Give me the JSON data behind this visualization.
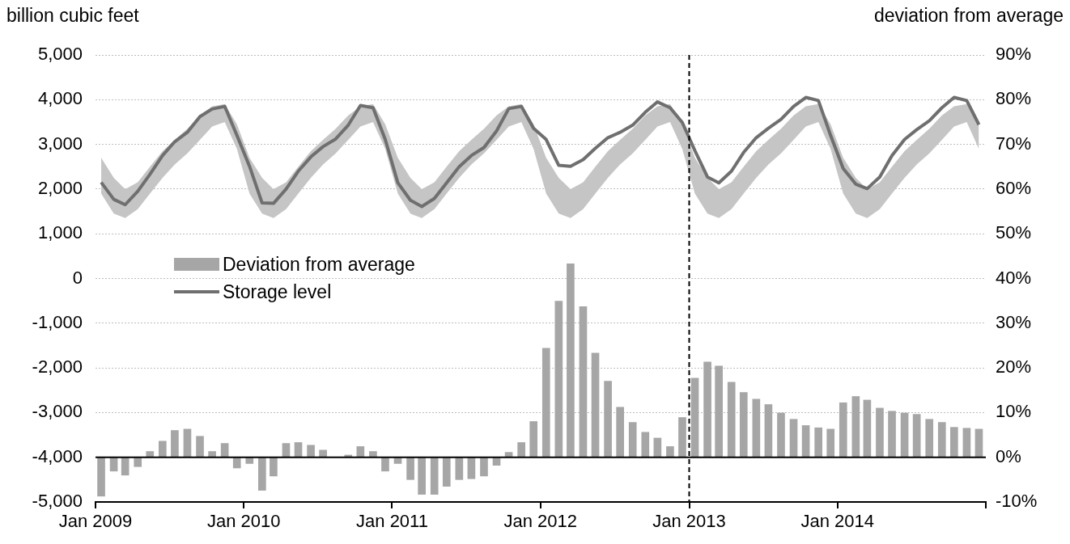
{
  "chart_data": {
    "type": "bar",
    "ylabel": "billion cubic feet",
    "y2label": "deviation from average",
    "x": [
      "2009-01-15",
      "2009-02-15",
      "2009-03-15",
      "2009-04-15",
      "2009-05-15",
      "2009-06-15",
      "2009-07-15",
      "2009-08-15",
      "2009-09-15",
      "2009-10-15",
      "2009-11-15",
      "2009-12-15",
      "2010-01-15",
      "2010-02-15",
      "2010-03-15",
      "2010-04-15",
      "2010-05-15",
      "2010-06-15",
      "2010-07-15",
      "2010-08-15",
      "2010-09-15",
      "2010-10-15",
      "2010-11-15",
      "2010-12-15",
      "2011-01-15",
      "2011-02-15",
      "2011-03-15",
      "2011-04-15",
      "2011-05-15",
      "2011-06-15",
      "2011-07-15",
      "2011-08-15",
      "2011-09-15",
      "2011-10-15",
      "2011-11-15",
      "2011-12-15",
      "2012-01-15",
      "2012-02-15",
      "2012-03-15",
      "2012-04-15",
      "2012-05-15",
      "2012-06-15",
      "2012-07-15",
      "2012-08-15",
      "2012-09-15",
      "2012-10-15",
      "2012-11-15",
      "2012-12-15",
      "2013-01-15",
      "2013-02-15",
      "2013-03-15",
      "2013-04-15",
      "2013-05-15",
      "2013-06-15",
      "2013-07-15",
      "2013-08-15",
      "2013-09-15",
      "2013-10-15",
      "2013-11-15",
      "2013-12-15",
      "2014-01-15",
      "2014-02-15",
      "2014-03-15",
      "2014-04-15",
      "2014-05-15",
      "2014-06-15",
      "2014-07-15",
      "2014-08-15",
      "2014-09-15",
      "2014-10-15",
      "2014-11-15",
      "2014-12-15"
    ],
    "series": [
      {
        "name": "Deviation from average",
        "axis": "y2",
        "color": "#a6a6a6",
        "values": [
          -8.7,
          -3.1,
          -4.0,
          -2.1,
          1.3,
          3.6,
          6.0,
          6.3,
          4.7,
          1.3,
          3.1,
          -2.4,
          -1.4,
          -7.4,
          -4.2,
          3.1,
          3.3,
          2.7,
          1.6,
          null,
          0.5,
          2.4,
          1.3,
          -3.1,
          -1.4,
          -5.0,
          -8.3,
          -8.3,
          -6.5,
          -5.0,
          -4.8,
          -4.2,
          -1.8,
          1.1,
          3.3,
          8.0,
          24.4,
          34.9,
          43.3,
          33.7,
          23.3,
          17.0,
          11.2,
          7.8,
          5.6,
          4.3,
          2.4,
          8.9,
          17.7,
          21.3,
          20.4,
          16.8,
          14.5,
          13.0,
          11.8,
          9.9,
          8.5,
          7.1,
          6.6,
          6.3,
          12.2,
          13.6,
          12.8,
          11.0,
          10.3,
          9.9,
          9.6,
          8.5,
          7.8,
          6.7,
          6.5,
          6.3
        ]
      },
      {
        "name": "Storage level",
        "type": "line",
        "color": "#6f6f6f",
        "values": [
          2150,
          1770,
          1650,
          1950,
          2330,
          2750,
          3060,
          3270,
          3620,
          3790,
          3850,
          3200,
          2510,
          1690,
          1680,
          2000,
          2400,
          2720,
          2950,
          3120,
          3430,
          3870,
          3820,
          3110,
          2140,
          1750,
          1610,
          1790,
          2140,
          2500,
          2750,
          2930,
          3300,
          3800,
          3850,
          3360,
          3110,
          2530,
          2510,
          2660,
          2910,
          3150,
          3270,
          3430,
          3720,
          3950,
          3820,
          3490,
          2860,
          2270,
          2140,
          2400,
          2820,
          3150,
          3360,
          3560,
          3850,
          4050,
          3980,
          3200,
          2460,
          2110,
          2010,
          2270,
          2750,
          3110,
          3330,
          3530,
          3820,
          4050,
          3980,
          3440
        ],
        "lower": [
          1900,
          1450,
          1350,
          1550,
          1900,
          2250,
          2550,
          2800,
          3100,
          3400,
          3500,
          2900,
          1900,
          1450,
          1350,
          1550,
          1900,
          2250,
          2550,
          2800,
          3100,
          3400,
          3500,
          2900,
          1900,
          1450,
          1350,
          1550,
          1900,
          2250,
          2550,
          2800,
          3100,
          3400,
          3500,
          2900,
          1900,
          1450,
          1350,
          1550,
          1900,
          2250,
          2550,
          2800,
          3100,
          3400,
          3500,
          2900,
          1900,
          1450,
          1350,
          1550,
          1900,
          2250,
          2550,
          2800,
          3100,
          3400,
          3500,
          2900,
          1900,
          1450,
          1350,
          1550,
          1900,
          2250,
          2550,
          2800,
          3100,
          3400,
          3500,
          2900
        ],
        "upper": [
          2700,
          2250,
          2000,
          2150,
          2500,
          2850,
          3100,
          3350,
          3650,
          3850,
          3900,
          3450,
          2700,
          2250,
          2000,
          2150,
          2500,
          2850,
          3100,
          3350,
          3650,
          3850,
          3900,
          3450,
          2700,
          2250,
          2000,
          2150,
          2500,
          2850,
          3100,
          3350,
          3650,
          3850,
          3900,
          3450,
          2700,
          2250,
          2000,
          2150,
          2500,
          2850,
          3100,
          3350,
          3650,
          3850,
          3900,
          3450,
          2700,
          2250,
          2000,
          2150,
          2500,
          2850,
          3100,
          3350,
          3650,
          3850,
          3900,
          3450,
          2700,
          2250,
          2000,
          2150,
          2500,
          2850,
          3100,
          3350,
          3650,
          3850,
          3900,
          3450
        ]
      }
    ],
    "xlim": [
      "2009-01-01",
      "2015-01-01"
    ],
    "xticks": [
      {
        "value": "2009-01-01",
        "label": "Jan 2009"
      },
      {
        "value": "2010-01-01",
        "label": "Jan 2010"
      },
      {
        "value": "2011-01-01",
        "label": "Jan 2011"
      },
      {
        "value": "2012-01-01",
        "label": "Jan 2012"
      },
      {
        "value": "2013-01-01",
        "label": "Jan 2013"
      },
      {
        "value": "2014-01-01",
        "label": "Jan 2014"
      },
      {
        "value": "2015-01-01",
        "label": null
      }
    ],
    "ylim": [
      -5000,
      5000
    ],
    "yticks": [
      {
        "value": -5000,
        "label": "-5,000"
      },
      {
        "value": -4000,
        "label": "-4,000"
      },
      {
        "value": -3000,
        "label": "-3,000"
      },
      {
        "value": -2000,
        "label": "-2,000"
      },
      {
        "value": -1000,
        "label": "-1,000"
      },
      {
        "value": 0,
        "label": "0"
      },
      {
        "value": 1000,
        "label": "1,000"
      },
      {
        "value": 2000,
        "label": "2,000"
      },
      {
        "value": 3000,
        "label": "3,000"
      },
      {
        "value": 4000,
        "label": "4,000"
      },
      {
        "value": 5000,
        "label": "5,000"
      }
    ],
    "y2lim": [
      -10,
      90
    ],
    "y2ticks": [
      {
        "value": -10,
        "label": "-10%"
      },
      {
        "value": 0,
        "label": "0%"
      },
      {
        "value": 10,
        "label": "10%"
      },
      {
        "value": 20,
        "label": "20%"
      },
      {
        "value": 30,
        "label": "30%"
      },
      {
        "value": 40,
        "label": "40%"
      },
      {
        "value": 50,
        "label": "50%"
      },
      {
        "value": 60,
        "label": "60%"
      },
      {
        "value": 70,
        "label": "70%"
      },
      {
        "value": 80,
        "label": "80%"
      },
      {
        "value": 90,
        "label": "90%"
      }
    ],
    "ref_lines": [
      {
        "axis": "x",
        "value": "2013-01-01",
        "color": "#000000",
        "line_style": "dashed"
      },
      {
        "axis": "y2",
        "value": 0,
        "color": "#000000",
        "line_style": "solid"
      }
    ],
    "grid": "y",
    "legend": "left",
    "marker": "none"
  }
}
